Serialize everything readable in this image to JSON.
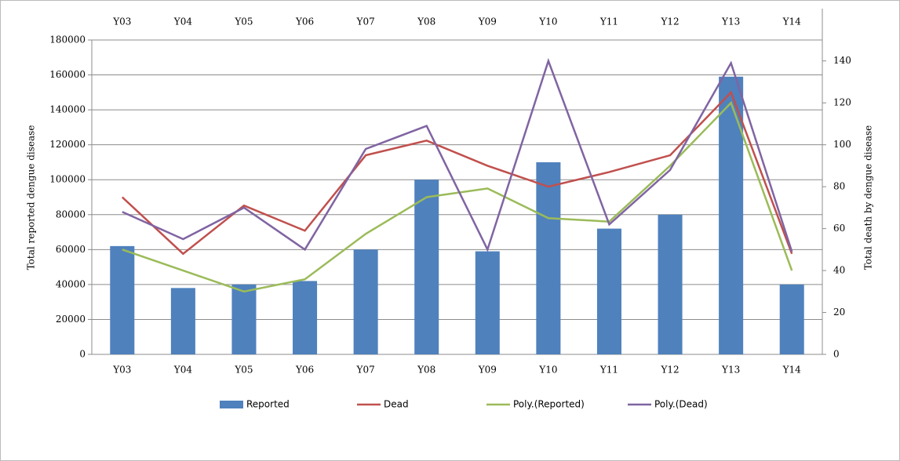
{
  "chart_data": {
    "type": "combo",
    "y_label": "Total reported dengue disease",
    "y2_label": "Total death by dengue disease",
    "categories": [
      "Y03",
      "Y04",
      "Y05",
      "Y06",
      "Y07",
      "Y08",
      "Y09",
      "Y10",
      "Y11",
      "Y12",
      "Y13",
      "Y14"
    ],
    "series": [
      {
        "name": "Reported",
        "type": "bar",
        "color": "#4f81bd",
        "values": [
          62000,
          38000,
          40000,
          42000,
          60000,
          100000,
          59000,
          110000,
          72000,
          80000,
          159000,
          40000
        ]
      },
      {
        "name": "Dead",
        "type": "line",
        "axis": "y2",
        "color": "#c0504d",
        "values": [
          75,
          48,
          71,
          59,
          95,
          102,
          90,
          80,
          87,
          95,
          125,
          48
        ]
      },
      {
        "name": "Poly.(Reported)",
        "type": "line",
        "color": "#9bbb59",
        "values": [
          60000,
          48000,
          36000,
          43000,
          69000,
          90000,
          95000,
          78000,
          76000,
          108000,
          144000,
          48000
        ]
      },
      {
        "name": "Poly.(Dead)",
        "type": "line",
        "axis": "y2",
        "color": "#8064a2",
        "values": [
          68,
          55,
          70,
          50,
          98,
          109,
          50,
          140,
          62,
          88,
          139,
          49
        ]
      }
    ],
    "ylim": [
      0,
      180000
    ],
    "yticks": [
      0,
      20000,
      40000,
      60000,
      80000,
      100000,
      120000,
      140000,
      160000,
      180000
    ],
    "y2lim": [
      0,
      150
    ],
    "y2ticks": [
      0,
      20,
      40,
      60,
      80,
      100,
      120,
      140
    ],
    "grid": true,
    "legend": "bottom"
  }
}
